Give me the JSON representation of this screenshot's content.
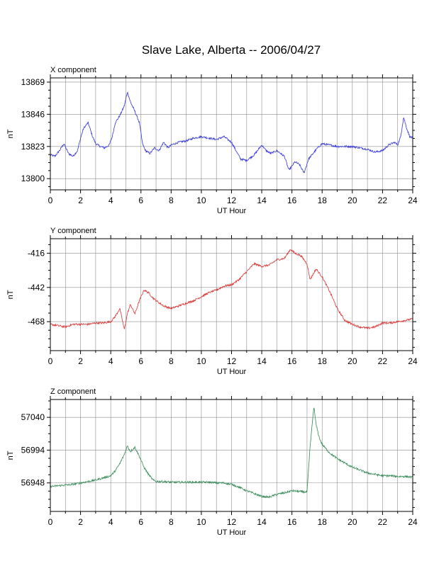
{
  "figure": {
    "title": "Slave Lake, Alberta -- 2006/04/27"
  },
  "chart_data": [
    {
      "type": "line",
      "title": "X component",
      "xlabel": "UT Hour",
      "ylabel": "nT",
      "xlim": [
        0,
        24
      ],
      "ylim": [
        13792,
        13872
      ],
      "xticks": [
        0,
        2,
        4,
        6,
        8,
        10,
        12,
        14,
        16,
        18,
        20,
        22,
        24
      ],
      "yticks": [
        13800,
        13823,
        13846,
        13869
      ],
      "grid": true,
      "color": "#3333dd",
      "series": [
        {
          "x": [
            0,
            0.3,
            0.6,
            0.9,
            1.2,
            1.5,
            1.8,
            2.0,
            2.2,
            2.5,
            2.8,
            3.0,
            3.3,
            3.6,
            3.9,
            4.1,
            4.3,
            4.6,
            4.9,
            5.1,
            5.3,
            5.6,
            5.9,
            6.1,
            6.3,
            6.6,
            6.9,
            7.2,
            7.5,
            7.8,
            8.0,
            8.5,
            9.0,
            9.5,
            10.0,
            10.5,
            11.0,
            11.5,
            12.0,
            12.3,
            12.6,
            13.0,
            13.5,
            14.0,
            14.3,
            14.6,
            15.0,
            15.5,
            15.8,
            16.2,
            16.5,
            16.8,
            17.1,
            17.4,
            17.7,
            18.0,
            18.5,
            19.0,
            19.5,
            20.0,
            20.5,
            21.0,
            21.5,
            22.0,
            22.4,
            22.8,
            23.0,
            23.2,
            23.4,
            23.6,
            23.8,
            24.0
          ],
          "y": [
            13817,
            13816,
            13820,
            13825,
            13818,
            13816,
            13820,
            13829,
            13836,
            13840,
            13830,
            13825,
            13823,
            13822,
            13824,
            13830,
            13840,
            13845,
            13852,
            13862,
            13855,
            13848,
            13840,
            13825,
            13820,
            13818,
            13822,
            13820,
            13826,
            13822,
            13824,
            13826,
            13827,
            13829,
            13830,
            13829,
            13828,
            13830,
            13826,
            13820,
            13814,
            13813,
            13817,
            13824,
            13820,
            13818,
            13820,
            13816,
            13806,
            13812,
            13810,
            13804,
            13814,
            13818,
            13822,
            13825,
            13824,
            13823,
            13823,
            13823,
            13822,
            13821,
            13819,
            13820,
            13824,
            13826,
            13824,
            13830,
            13844,
            13836,
            13830,
            13829
          ]
        }
      ]
    },
    {
      "type": "line",
      "title": "Y component",
      "xlabel": "UT Hour",
      "ylabel": "nT",
      "xlim": [
        0,
        24
      ],
      "ylim": [
        -490,
        -405
      ],
      "xticks": [
        0,
        2,
        4,
        6,
        8,
        10,
        12,
        14,
        16,
        18,
        20,
        22,
        24
      ],
      "yticks": [
        -416,
        -442,
        -468
      ],
      "grid": true,
      "color": "#dd3333",
      "series": [
        {
          "x": [
            0,
            0.5,
            1.0,
            1.5,
            2.0,
            2.5,
            3.0,
            3.5,
            4.0,
            4.3,
            4.6,
            4.9,
            5.1,
            5.3,
            5.6,
            5.9,
            6.2,
            6.5,
            6.8,
            7.0,
            7.5,
            8.0,
            8.5,
            9.0,
            9.5,
            10.0,
            10.5,
            11.0,
            11.5,
            12.0,
            12.5,
            13.0,
            13.5,
            14.0,
            14.5,
            15.0,
            15.5,
            15.9,
            16.2,
            16.6,
            17.0,
            17.2,
            17.6,
            18.0,
            18.5,
            19.0,
            19.5,
            20.0,
            20.5,
            21.0,
            21.5,
            22.0,
            22.5,
            23.0,
            23.5,
            24.0
          ],
          "y": [
            -470,
            -471,
            -472,
            -470,
            -470,
            -470,
            -469,
            -469,
            -468,
            -464,
            -458,
            -474,
            -462,
            -455,
            -462,
            -452,
            -444,
            -446,
            -450,
            -452,
            -456,
            -458,
            -456,
            -454,
            -452,
            -449,
            -446,
            -444,
            -441,
            -440,
            -436,
            -430,
            -424,
            -426,
            -425,
            -421,
            -420,
            -413,
            -416,
            -418,
            -424,
            -436,
            -428,
            -434,
            -445,
            -458,
            -467,
            -470,
            -472,
            -473,
            -472,
            -469,
            -469,
            -468,
            -467,
            -466
          ]
        }
      ]
    },
    {
      "type": "line",
      "title": "Z component",
      "xlabel": "UT Hour",
      "ylabel": "nT",
      "xlim": [
        0,
        24
      ],
      "ylim": [
        56908,
        57065
      ],
      "xticks": [
        0,
        2,
        4,
        6,
        8,
        10,
        12,
        14,
        16,
        18,
        20,
        22,
        24
      ],
      "yticks": [
        56948,
        56994,
        57040
      ],
      "grid": true,
      "color": "#338855",
      "series": [
        {
          "x": [
            0,
            0.5,
            1.0,
            1.5,
            2.0,
            2.5,
            3.0,
            3.5,
            4.0,
            4.3,
            4.6,
            4.9,
            5.1,
            5.3,
            5.6,
            5.9,
            6.2,
            6.5,
            6.8,
            7.0,
            7.5,
            8.0,
            8.5,
            9.0,
            9.5,
            10.0,
            10.5,
            11.0,
            11.5,
            12.0,
            12.5,
            13.0,
            13.5,
            14.0,
            14.5,
            15.0,
            15.5,
            16.0,
            16.5,
            17.0,
            17.2,
            17.45,
            17.6,
            17.8,
            18.0,
            18.5,
            19.0,
            19.5,
            20.0,
            20.5,
            21.0,
            21.5,
            22.0,
            22.5,
            23.0,
            23.5,
            24.0
          ],
          "y": [
            56943,
            56944,
            56945,
            56946,
            56948,
            56950,
            56952,
            56955,
            56958,
            56965,
            56975,
            56988,
            57000,
            56992,
            56998,
            56985,
            56970,
            56960,
            56952,
            56950,
            56950,
            56949,
            56949,
            56949,
            56949,
            56949,
            56949,
            56948,
            56948,
            56946,
            56942,
            56937,
            56933,
            56929,
            56928,
            56932,
            56934,
            56937,
            56936,
            56935,
            56998,
            57055,
            57030,
            57012,
            57002,
            56990,
            56982,
            56976,
            56970,
            56966,
            56962,
            56960,
            56958,
            56958,
            56957,
            56957,
            56956
          ]
        }
      ]
    }
  ]
}
